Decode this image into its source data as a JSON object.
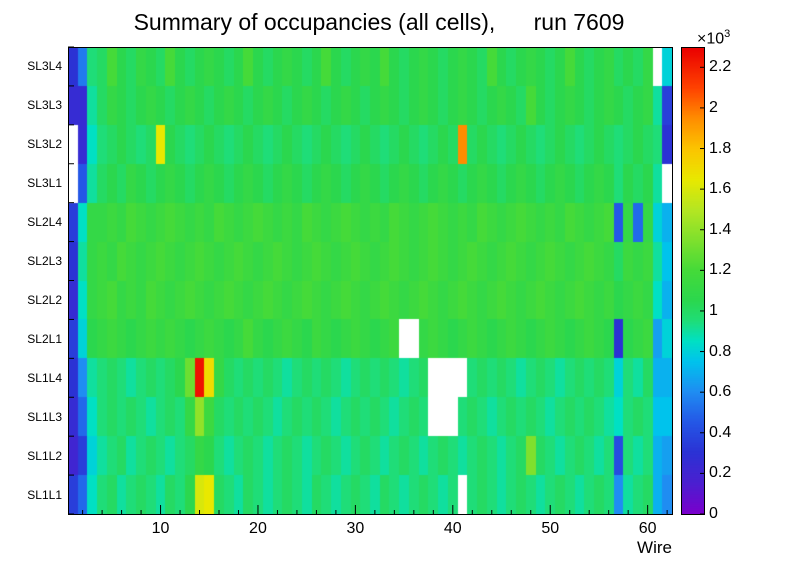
{
  "title": "Summary of occupancies (all cells),      run 7609",
  "x_axis": {
    "label": "Wire",
    "tick_labels": [
      "10",
      "20",
      "30",
      "40",
      "50",
      "60"
    ],
    "tick_values": [
      10,
      20,
      30,
      40,
      50,
      60
    ],
    "min": 0.5,
    "max": 62.5
  },
  "y_axis": {
    "row_labels_bottom_to_top": [
      "SL1L1",
      "SL1L2",
      "SL1L3",
      "SL1L4",
      "SL2L1",
      "SL2L2",
      "SL2L3",
      "SL2L4",
      "SL3L1",
      "SL3L2",
      "SL3L3",
      "SL3L4"
    ]
  },
  "colorbar": {
    "scale_prefix": "×10",
    "scale_exponent": "3",
    "tick_labels": [
      "0",
      "0.2",
      "0.4",
      "0.6",
      "0.8",
      "1",
      "1.2",
      "1.4",
      "1.6",
      "1.8",
      "2",
      "2.2"
    ],
    "tick_values": [
      0,
      200,
      400,
      600,
      800,
      1000,
      1200,
      1400,
      1600,
      1800,
      2000,
      2200
    ],
    "zmin": 0,
    "zmax": 2300
  },
  "chart_data": {
    "type": "heatmap",
    "title": "Summary of occupancies (all cells),      run 7609",
    "xlabel": "Wire",
    "x_bins": [
      1,
      62
    ],
    "row_labels_bottom_to_top": [
      "SL1L1",
      "SL1L2",
      "SL1L3",
      "SL1L4",
      "SL2L1",
      "SL2L2",
      "SL2L3",
      "SL2L4",
      "SL3L1",
      "SL3L2",
      "SL3L3",
      "SL3L4"
    ],
    "zmin": 0,
    "zmax": 2300,
    "empty_value": 0,
    "palette_stops": [
      [
        0,
        "#7a00cc"
      ],
      [
        150,
        "#4b1fd0"
      ],
      [
        300,
        "#2b32d4"
      ],
      [
        450,
        "#2457e6"
      ],
      [
        600,
        "#1f8df2"
      ],
      [
        750,
        "#00c3ec"
      ],
      [
        850,
        "#00e0c4"
      ],
      [
        950,
        "#1fdd78"
      ],
      [
        1050,
        "#2bd74e"
      ],
      [
        1200,
        "#45da39"
      ],
      [
        1350,
        "#7fe02d"
      ],
      [
        1500,
        "#b5e622"
      ],
      [
        1650,
        "#e9e800"
      ],
      [
        1800,
        "#fcc400"
      ],
      [
        1950,
        "#ff8d00"
      ],
      [
        2100,
        "#ff4200"
      ],
      [
        2300,
        "#ea0000"
      ]
    ],
    "values_bottom_to_top": [
      [
        350,
        500,
        850,
        950,
        1000,
        900,
        950,
        1000,
        950,
        900,
        1000,
        950,
        1050,
        1600,
        1650,
        1000,
        950,
        900,
        1000,
        950,
        900,
        950,
        1000,
        950,
        900,
        1000,
        950,
        900,
        950,
        1000,
        950,
        900,
        1000,
        950,
        900,
        950,
        1000,
        950,
        900,
        950,
        0,
        950,
        1000,
        950,
        900,
        950,
        1000,
        950,
        900,
        950,
        1000,
        950,
        900,
        950,
        1000,
        950,
        600,
        900,
        950,
        1000,
        700,
        600
      ],
      [
        200,
        350,
        800,
        900,
        950,
        1000,
        900,
        950,
        1000,
        950,
        900,
        950,
        1000,
        1100,
        1050,
        950,
        900,
        950,
        1000,
        950,
        900,
        950,
        1000,
        950,
        900,
        950,
        1000,
        950,
        900,
        950,
        1000,
        950,
        900,
        950,
        1000,
        950,
        900,
        950,
        1000,
        950,
        900,
        950,
        1000,
        950,
        900,
        950,
        1000,
        1350,
        1000,
        950,
        900,
        950,
        1000,
        950,
        900,
        950,
        400,
        950,
        900,
        950,
        700,
        650
      ],
      [
        250,
        500,
        850,
        950,
        1000,
        950,
        1000,
        950,
        900,
        950,
        1000,
        950,
        1100,
        1400,
        1150,
        1000,
        950,
        1000,
        950,
        1000,
        950,
        900,
        950,
        1000,
        950,
        1000,
        950,
        900,
        950,
        1000,
        950,
        1000,
        950,
        900,
        950,
        1000,
        950,
        0,
        0,
        0,
        950,
        1000,
        950,
        900,
        950,
        1000,
        950,
        1000,
        950,
        900,
        950,
        1000,
        950,
        1000,
        950,
        900,
        850,
        950,
        1000,
        950,
        750,
        750
      ],
      [
        300,
        600,
        900,
        950,
        1000,
        950,
        900,
        950,
        1000,
        950,
        1000,
        1050,
        1300,
        2250,
        1700,
        1100,
        1000,
        950,
        1000,
        950,
        1000,
        950,
        900,
        950,
        1000,
        950,
        1000,
        950,
        900,
        950,
        1000,
        950,
        1000,
        950,
        900,
        950,
        1000,
        0,
        0,
        0,
        0,
        950,
        1000,
        950,
        1000,
        950,
        900,
        950,
        1000,
        950,
        900,
        950,
        1000,
        950,
        1000,
        950,
        800,
        950,
        900,
        1000,
        700,
        700
      ],
      [
        350,
        800,
        1050,
        1100,
        1150,
        1100,
        1050,
        1100,
        1150,
        1100,
        1150,
        1100,
        1050,
        1100,
        1150,
        1100,
        1050,
        1100,
        1200,
        1100,
        1050,
        1100,
        1150,
        1100,
        1050,
        1150,
        1100,
        1050,
        1100,
        1150,
        1100,
        1050,
        1100,
        1150,
        0,
        0,
        1100,
        1150,
        1100,
        1050,
        1100,
        1150,
        1100,
        1050,
        1100,
        1150,
        1100,
        1050,
        1100,
        1150,
        1100,
        1050,
        1100,
        1150,
        1100,
        1050,
        300,
        1050,
        1100,
        1150,
        650,
        800
      ],
      [
        250,
        850,
        1100,
        1150,
        1200,
        1100,
        1150,
        1100,
        1200,
        1150,
        1100,
        1150,
        1200,
        1150,
        1100,
        1150,
        1200,
        1150,
        1100,
        1150,
        1200,
        1150,
        1100,
        1150,
        1200,
        1150,
        1100,
        1150,
        1200,
        1150,
        1100,
        1150,
        1200,
        1150,
        1100,
        1150,
        1200,
        1150,
        1100,
        1150,
        1200,
        1150,
        1100,
        1150,
        1200,
        1150,
        1100,
        1150,
        1200,
        1150,
        1100,
        1150,
        1200,
        1150,
        1100,
        1150,
        1050,
        1100,
        1150,
        1100,
        850,
        700
      ],
      [
        300,
        900,
        1100,
        1150,
        1100,
        1200,
        1150,
        1100,
        1150,
        1200,
        1150,
        1100,
        1150,
        1200,
        1150,
        1100,
        1150,
        1200,
        1150,
        1100,
        1150,
        1200,
        1150,
        1100,
        1150,
        1200,
        1150,
        1100,
        1150,
        1200,
        1150,
        1100,
        1150,
        1200,
        1150,
        1100,
        1150,
        1200,
        1150,
        1100,
        1150,
        1200,
        1150,
        1100,
        1150,
        1200,
        1150,
        1100,
        1150,
        1200,
        1150,
        1100,
        1150,
        1200,
        1150,
        1100,
        1000,
        1150,
        1100,
        1150,
        900,
        750
      ],
      [
        350,
        850,
        1100,
        1100,
        1150,
        1100,
        1200,
        1150,
        1100,
        1150,
        1200,
        1150,
        1100,
        1150,
        1100,
        1200,
        1150,
        1100,
        1150,
        1200,
        1150,
        1100,
        1150,
        1100,
        1200,
        1150,
        1100,
        1150,
        1200,
        1150,
        1100,
        1150,
        1100,
        1200,
        1150,
        1100,
        1150,
        1200,
        1150,
        1100,
        1150,
        1100,
        1200,
        1150,
        1100,
        1150,
        1200,
        1150,
        1100,
        1150,
        1100,
        1200,
        1150,
        1100,
        1150,
        1200,
        450,
        1100,
        500,
        1100,
        800,
        700
      ],
      [
        0,
        450,
        900,
        1000,
        1050,
        1000,
        1100,
        1050,
        1000,
        1050,
        1100,
        1050,
        1000,
        1050,
        1100,
        1050,
        1000,
        1050,
        1100,
        1050,
        1000,
        1050,
        1100,
        1050,
        1000,
        1050,
        1100,
        1050,
        1000,
        1050,
        1100,
        1050,
        1000,
        1050,
        1100,
        1050,
        1000,
        1050,
        1100,
        1050,
        1000,
        1050,
        1100,
        1050,
        1000,
        1050,
        1100,
        1050,
        1000,
        1050,
        1100,
        1050,
        1000,
        1050,
        1100,
        1050,
        950,
        1050,
        1000,
        1050,
        900,
        0
      ],
      [
        0,
        250,
        850,
        950,
        1000,
        1050,
        1000,
        950,
        1000,
        1650,
        1050,
        1000,
        950,
        1000,
        1050,
        1000,
        950,
        1000,
        1050,
        1000,
        950,
        1000,
        1050,
        1000,
        950,
        1000,
        1050,
        1000,
        950,
        1000,
        1050,
        1000,
        950,
        1000,
        1050,
        1000,
        950,
        1000,
        1050,
        1000,
        1950,
        1000,
        1050,
        1000,
        950,
        1000,
        1050,
        1000,
        950,
        1000,
        1050,
        1000,
        950,
        1000,
        1050,
        1000,
        950,
        1000,
        1050,
        1000,
        950,
        300
      ],
      [
        250,
        250,
        900,
        1000,
        1100,
        1050,
        1000,
        1050,
        1100,
        1050,
        1000,
        1050,
        1100,
        1050,
        1000,
        1050,
        1100,
        1050,
        1000,
        1050,
        1100,
        1050,
        1000,
        1050,
        1100,
        1050,
        1000,
        1050,
        1100,
        1050,
        1000,
        1050,
        1100,
        1050,
        1000,
        1050,
        1100,
        1050,
        1000,
        1050,
        1100,
        1050,
        1000,
        1050,
        1100,
        1050,
        1000,
        1200,
        1050,
        1000,
        1050,
        1100,
        1050,
        1000,
        1050,
        1100,
        1050,
        1000,
        1050,
        1100,
        900,
        350
      ],
      [
        300,
        550,
        950,
        1000,
        1200,
        1050,
        1000,
        1100,
        1050,
        1000,
        1200,
        1050,
        1000,
        1050,
        1100,
        1050,
        1000,
        1050,
        1200,
        1050,
        1000,
        1050,
        1100,
        1050,
        1000,
        1050,
        1200,
        1050,
        1000,
        1050,
        1100,
        1050,
        1200,
        1050,
        1000,
        1050,
        1100,
        1050,
        1000,
        1050,
        1100,
        1050,
        1000,
        1200,
        1050,
        1000,
        1050,
        1100,
        1050,
        1000,
        1050,
        1200,
        1050,
        1000,
        1050,
        1100,
        1000,
        1050,
        1000,
        1100,
        0,
        800
      ]
    ]
  }
}
